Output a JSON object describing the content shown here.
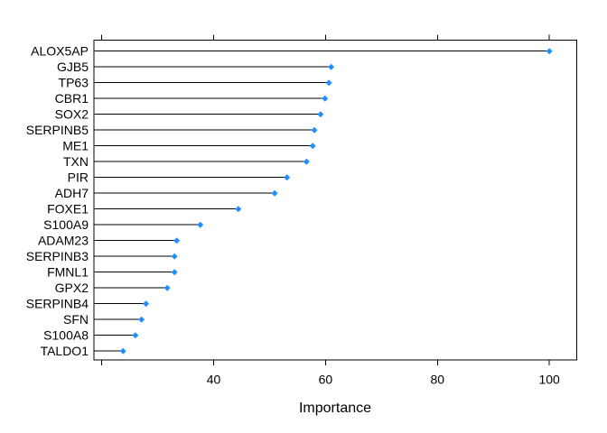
{
  "window": {
    "background": "#FFFFFF"
  },
  "chart_data": {
    "type": "scatter",
    "variant": "lollipop_dotplot",
    "title": "",
    "xlabel": "Importance",
    "ylabel": "",
    "categories": [
      "ALOX5AP",
      "GJB5",
      "TP63",
      "CBR1",
      "SOX2",
      "SERPINB5",
      "ME1",
      "TXN",
      "PIR",
      "ADH7",
      "FOXE1",
      "S100A9",
      "ADAM23",
      "SERPINB3",
      "FMNL1",
      "GPX2",
      "SERPINB4",
      "SFN",
      "S100A8",
      "TALDO1"
    ],
    "values": [
      100,
      61.0,
      60.6,
      59.9,
      59.1,
      58.0,
      57.7,
      56.6,
      53.1,
      50.9,
      44.4,
      37.6,
      33.4,
      33.0,
      33.0,
      31.7,
      27.9,
      27.1,
      26.0,
      23.8
    ],
    "xlim": [
      18.6,
      104.9
    ],
    "xticks": [
      20,
      40,
      60,
      80,
      100
    ],
    "xtick_labels": [
      "",
      "40",
      "60",
      "80",
      "100"
    ],
    "grid": false,
    "legend_position": "none",
    "colors": {
      "point": "#1E90FF",
      "line": "#000000",
      "box": "#000000",
      "text": "#000000",
      "background": "#FFFFFF"
    }
  }
}
